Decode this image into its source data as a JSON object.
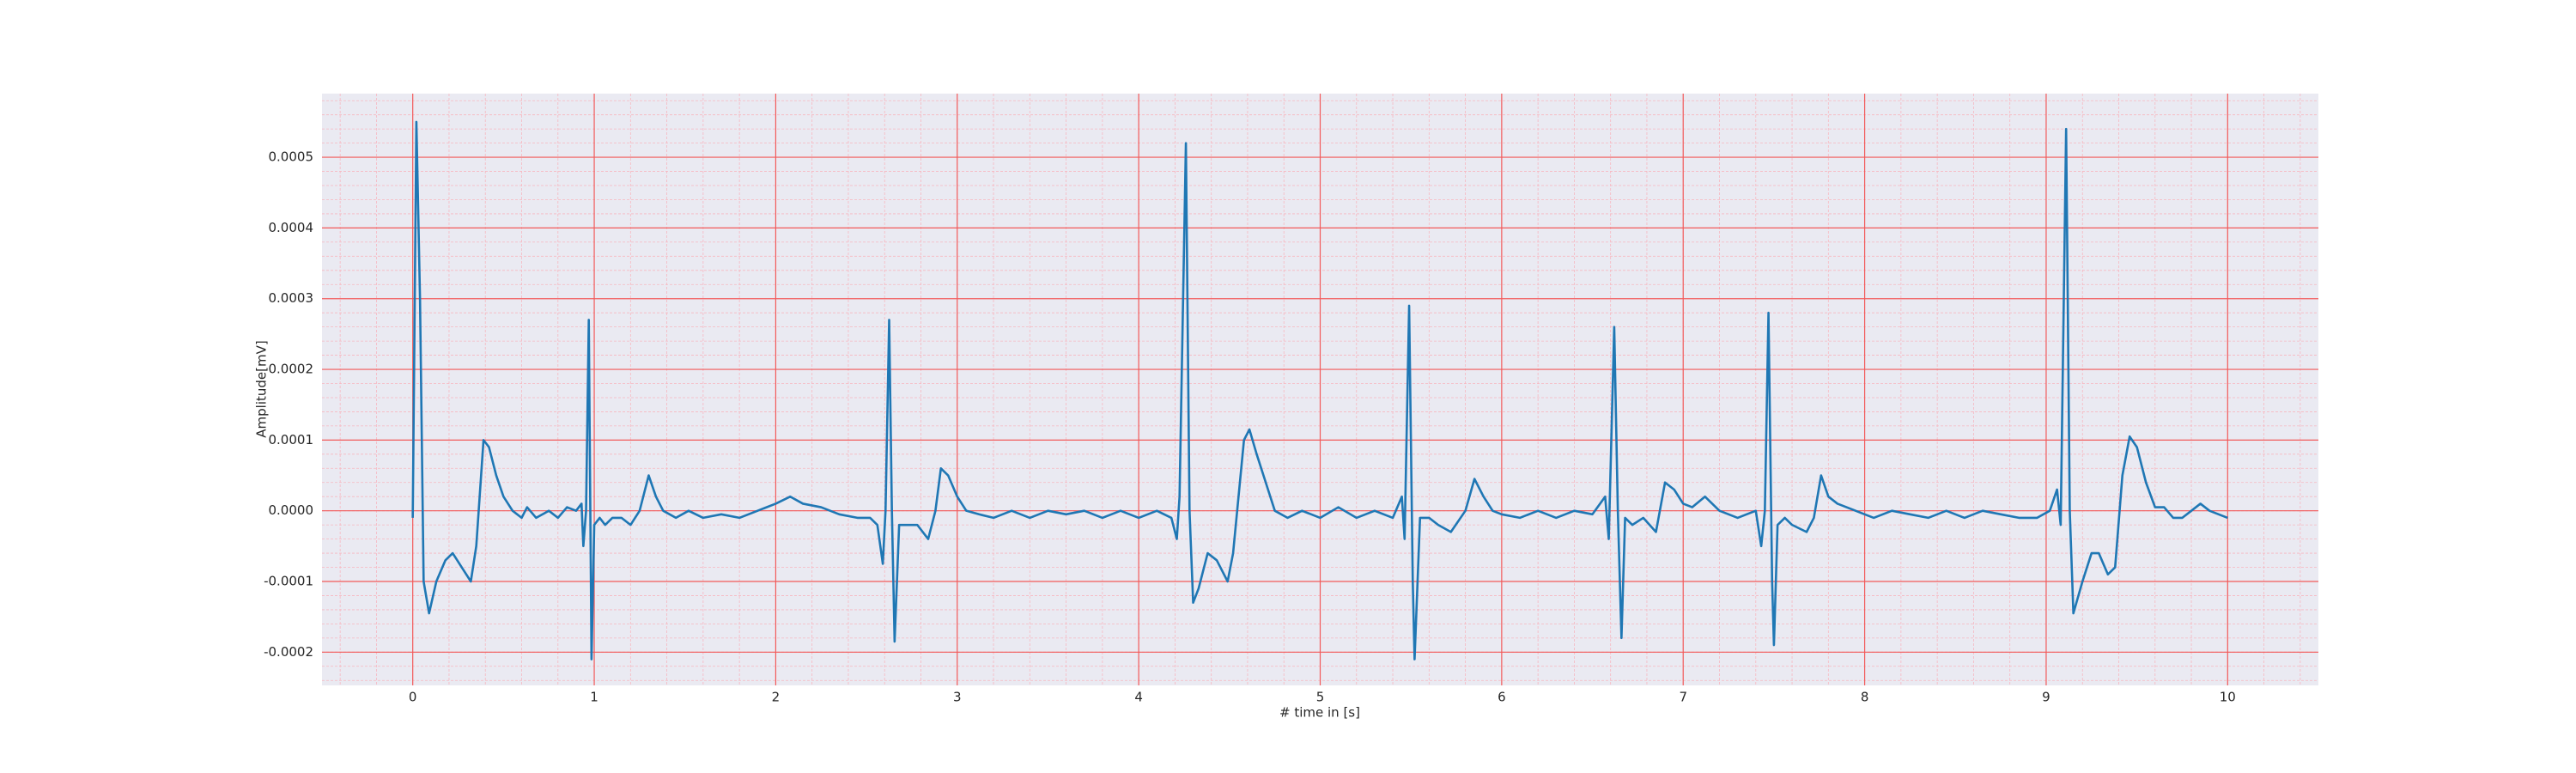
{
  "chart_data": {
    "type": "line",
    "xlabel": "# time in [s]",
    "ylabel": "Amplitude[mV]",
    "xlim": [
      -0.5,
      10.5
    ],
    "ylim": [
      -0.000247,
      0.00059
    ],
    "xticks": [
      0,
      1,
      2,
      3,
      4,
      5,
      6,
      7,
      8,
      9,
      10
    ],
    "yticks": [
      -0.0002,
      -0.0001,
      {
        "value": 0,
        "label": "0.0000"
      },
      0.0001,
      0.0002,
      0.0003,
      0.0004,
      0.0005
    ],
    "grid": true,
    "grid_color": "#f25a5a",
    "minor_grid": {
      "x": 0.2,
      "y": 2e-05,
      "color": "#f7b7c0"
    },
    "background": "#eaeaf2",
    "series": [
      {
        "color": "#1f77b4",
        "x": [
          0,
          0.02,
          0.04,
          0.06,
          0.09,
          0.13,
          0.18,
          0.22,
          0.27,
          0.32,
          0.35,
          0.39,
          0.42,
          0.46,
          0.5,
          0.55,
          0.6,
          0.63,
          0.68,
          0.75,
          0.8,
          0.85,
          0.9,
          0.93,
          0.94,
          0.955,
          0.97,
          0.985,
          1.0,
          1.03,
          1.06,
          1.1,
          1.15,
          1.2,
          1.25,
          1.3,
          1.34,
          1.38,
          1.45,
          1.52,
          1.6,
          1.7,
          1.8,
          1.9,
          2.0,
          2.08,
          2.15,
          2.25,
          2.35,
          2.45,
          2.52,
          2.56,
          2.59,
          2.605,
          2.625,
          2.64,
          2.655,
          2.68,
          2.72,
          2.78,
          2.84,
          2.88,
          2.91,
          2.95,
          3.0,
          3.05,
          3.12,
          3.2,
          3.3,
          3.4,
          3.5,
          3.6,
          3.7,
          3.8,
          3.9,
          4.0,
          4.1,
          4.18,
          4.21,
          4.225,
          4.26,
          4.28,
          4.3,
          4.33,
          4.38,
          4.43,
          4.49,
          4.52,
          4.58,
          4.61,
          4.65,
          4.7,
          4.75,
          4.82,
          4.9,
          5.0,
          5.1,
          5.2,
          5.3,
          5.4,
          5.45,
          5.465,
          5.49,
          5.51,
          5.52,
          5.55,
          5.6,
          5.65,
          5.72,
          5.8,
          5.85,
          5.9,
          5.95,
          6.0,
          6.1,
          6.2,
          6.3,
          6.4,
          6.5,
          6.57,
          6.59,
          6.62,
          6.64,
          6.66,
          6.68,
          6.72,
          6.78,
          6.85,
          6.9,
          6.95,
          7.0,
          7.05,
          7.12,
          7.2,
          7.3,
          7.4,
          7.43,
          7.45,
          7.47,
          7.49,
          7.5,
          7.52,
          7.56,
          7.6,
          7.68,
          7.72,
          7.76,
          7.8,
          7.85,
          7.95,
          8.05,
          8.15,
          8.25,
          8.35,
          8.45,
          8.55,
          8.65,
          8.75,
          8.85,
          8.95,
          9.02,
          9.06,
          9.08,
          9.11,
          9.13,
          9.15,
          9.2,
          9.25,
          9.29,
          9.34,
          9.38,
          9.42,
          9.46,
          9.5,
          9.55,
          9.6,
          9.65,
          9.7,
          9.75,
          9.8,
          9.85,
          9.9,
          10.0
        ],
        "values": [
          -1e-05,
          0.00055,
          0.0003,
          -0.0001,
          -0.000145,
          -0.0001,
          -7e-05,
          -6e-05,
          -8e-05,
          -0.0001,
          -5e-05,
          0.0001,
          9e-05,
          5e-05,
          2e-05,
          0,
          -1e-05,
          5e-06,
          -1e-05,
          0,
          -1e-05,
          5e-06,
          0,
          1e-05,
          -5e-05,
          0,
          0.00027,
          -0.00021,
          -2e-05,
          -1e-05,
          -2e-05,
          -1e-05,
          -1e-05,
          -2e-05,
          0,
          5e-05,
          2e-05,
          0,
          -1e-05,
          0,
          -1e-05,
          -5e-06,
          -1e-05,
          0,
          1e-05,
          2e-05,
          1e-05,
          5e-06,
          -5e-06,
          -1e-05,
          -1e-05,
          -2e-05,
          -7.5e-05,
          0,
          0.00027,
          0,
          -0.000185,
          -2e-05,
          -2e-05,
          -2e-05,
          -4e-05,
          0,
          6e-05,
          5e-05,
          2e-05,
          0,
          -5e-06,
          -1e-05,
          0,
          -1e-05,
          0,
          -5e-06,
          0,
          -1e-05,
          0,
          -1e-05,
          0,
          -1e-05,
          -4e-05,
          2e-05,
          0.00052,
          0,
          -0.00013,
          -0.00011,
          -6e-05,
          -7e-05,
          -0.0001,
          -6e-05,
          0.0001,
          0.000115,
          8e-05,
          4e-05,
          0,
          -1e-05,
          0,
          -1e-05,
          5e-06,
          -1e-05,
          0,
          -1e-05,
          2e-05,
          -4e-05,
          0.00029,
          -0.0001,
          -0.00021,
          -1e-05,
          -1e-05,
          -2e-05,
          -3e-05,
          0,
          4.5e-05,
          2e-05,
          0,
          -5e-06,
          -1e-05,
          0,
          -1e-05,
          0,
          -5e-06,
          2e-05,
          -4e-05,
          0.00026,
          0,
          -0.00018,
          -1e-05,
          -2e-05,
          -1e-05,
          -3e-05,
          4e-05,
          3e-05,
          1e-05,
          5e-06,
          2e-05,
          0,
          -1e-05,
          0,
          -5e-05,
          0,
          0.00028,
          -0.0001,
          -0.00019,
          -2e-05,
          -1e-05,
          -2e-05,
          -3e-05,
          -1e-05,
          5e-05,
          2e-05,
          1e-05,
          0,
          -1e-05,
          0,
          -5e-06,
          -1e-05,
          0,
          -1e-05,
          0,
          -5e-06,
          -1e-05,
          -1e-05,
          0,
          3e-05,
          -2e-05,
          0.00054,
          0,
          -0.000145,
          -0.0001,
          -6e-05,
          -6e-05,
          -9e-05,
          -8e-05,
          5e-05,
          0.000105,
          9e-05,
          4e-05,
          5e-06,
          5e-06,
          -1e-05,
          -1e-05,
          0,
          1e-05,
          0,
          -1e-05
        ]
      }
    ]
  }
}
